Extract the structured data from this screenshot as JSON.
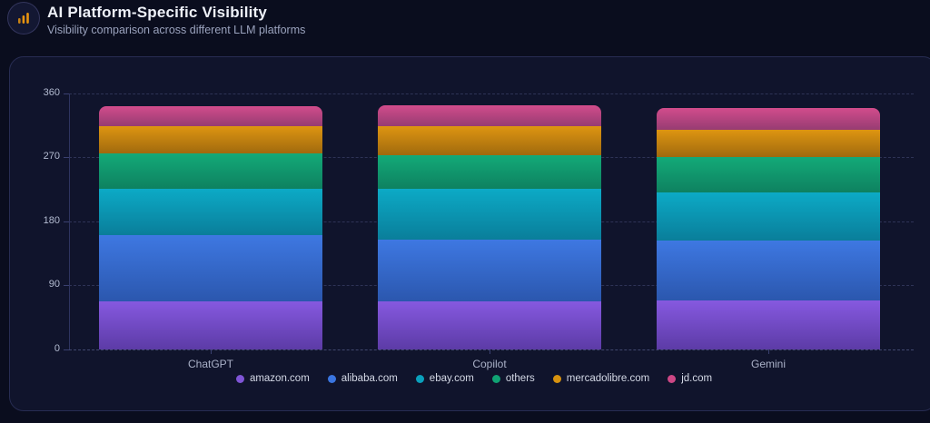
{
  "header": {
    "title": "AI Platform-Specific Visibility",
    "subtitle": "Visibility comparison across different LLM platforms",
    "icon": "bar-chart-icon",
    "icon_color": "#e8940f"
  },
  "colors": {
    "page_bg": "#0a0d1e",
    "card_bg": "#10142c",
    "card_border": "#272c52",
    "grid": "#7d85c4",
    "axis_text": "#b4bcd2",
    "legend_text": "#d4d9e6"
  },
  "chart_data": {
    "type": "bar",
    "stacked": true,
    "title": "AI Platform-Specific Visibility",
    "xlabel": "",
    "ylabel": "",
    "categories": [
      "ChatGPT",
      "Copilot",
      "Gemini"
    ],
    "series": [
      {
        "name": "amazon.com",
        "color": "#7f55d6",
        "gradient": [
          "#8659e0",
          "#5c3ba6"
        ],
        "values": [
          68,
          67,
          69
        ]
      },
      {
        "name": "alibaba.com",
        "color": "#3a75e0",
        "gradient": [
          "#3e78e2",
          "#2b57ae"
        ],
        "values": [
          92,
          87,
          84
        ]
      },
      {
        "name": "ebay.com",
        "color": "#0aa0bc",
        "gradient": [
          "#0caac6",
          "#0a7e9a"
        ],
        "values": [
          65,
          71,
          67
        ]
      },
      {
        "name": "others",
        "color": "#10a273",
        "gradient": [
          "#13aa78",
          "#0e8160"
        ],
        "values": [
          50,
          48,
          50
        ]
      },
      {
        "name": "mercadolibre.com",
        "color": "#d7920f",
        "gradient": [
          "#de9511",
          "#a06a0e"
        ],
        "values": [
          38,
          40,
          38
        ]
      },
      {
        "name": "jd.com",
        "color": "#cd4785",
        "gradient": [
          "#d24c8c",
          "#963c72"
        ],
        "values": [
          29,
          30,
          31
        ]
      }
    ],
    "totals": [
      342,
      343,
      339
    ],
    "yticks": [
      0,
      90,
      180,
      270,
      360
    ],
    "ylim": [
      0,
      360
    ],
    "grid": "dashed-horizontal",
    "legend_position": "bottom"
  }
}
